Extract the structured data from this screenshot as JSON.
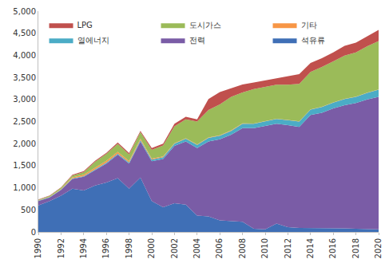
{
  "chart_data": {
    "type": "area",
    "stacked": true,
    "grid": false,
    "legend": "upper left",
    "x": [
      1990,
      1991,
      1992,
      1993,
      1994,
      1995,
      1996,
      1997,
      1998,
      1999,
      2000,
      2001,
      2002,
      2003,
      2004,
      2005,
      2006,
      2007,
      2008,
      2009,
      2010,
      2011,
      2012,
      2013,
      2014,
      2015,
      2016,
      2017,
      2018,
      2019,
      2020
    ],
    "xlim": [
      1990,
      2020
    ],
    "xticks": [
      1990,
      1992,
      1994,
      1996,
      1998,
      2000,
      2002,
      2004,
      2006,
      2008,
      2010,
      2012,
      2014,
      2016,
      2018,
      2020
    ],
    "ylim": [
      0,
      5000
    ],
    "yticks": [
      0,
      500,
      {
        "value": 1000,
        "label": "1,000"
      },
      {
        "value": 1500,
        "label": "1,500"
      },
      {
        "value": 2000,
        "label": "2,000"
      },
      {
        "value": 2500,
        "label": "2,500"
      },
      {
        "value": 3000,
        "label": "3,000"
      },
      {
        "value": 3500,
        "label": "3,500"
      },
      {
        "value": 4000,
        "label": "4,000"
      },
      {
        "value": 4500,
        "label": "4,500"
      },
      {
        "value": 5000,
        "label": "5,000"
      }
    ],
    "series": [
      {
        "name": "석유류",
        "color": "#3f6fb6",
        "values": [
          600,
          700,
          820,
          980,
          940,
          1050,
          1120,
          1220,
          980,
          1230,
          700,
          560,
          650,
          620,
          370,
          350,
          260,
          240,
          230,
          70,
          60,
          190,
          110,
          90,
          90,
          90,
          90,
          80,
          70,
          60,
          60
        ]
      },
      {
        "name": "전력",
        "color": "#7a5ca6",
        "values": [
          100,
          80,
          130,
          220,
          310,
          350,
          430,
          530,
          570,
          820,
          900,
          1090,
          1300,
          1430,
          1530,
          1700,
          1840,
          1960,
          2120,
          2280,
          2340,
          2260,
          2310,
          2290,
          2560,
          2610,
          2710,
          2790,
          2850,
          2940,
          3000
        ]
      },
      {
        "name": "열에너지",
        "color": "#4bacc6",
        "values": [
          10,
          10,
          10,
          15,
          15,
          20,
          20,
          25,
          25,
          30,
          40,
          40,
          50,
          60,
          70,
          80,
          80,
          90,
          100,
          100,
          100,
          110,
          110,
          120,
          120,
          130,
          130,
          140,
          140,
          150,
          160
        ]
      },
      {
        "name": "기타",
        "color": "#f79646",
        "values": [
          5,
          5,
          10,
          20,
          30,
          40,
          40,
          40,
          30,
          30,
          20,
          20,
          10,
          10,
          10,
          10,
          10,
          10,
          10,
          5,
          5,
          5,
          5,
          5,
          5,
          5,
          5,
          5,
          5,
          5,
          5
        ]
      },
      {
        "name": "도시가스",
        "color": "#9bbb59",
        "values": [
          10,
          20,
          30,
          40,
          60,
          130,
          160,
          180,
          150,
          150,
          200,
          250,
          380,
          430,
          520,
          620,
          700,
          760,
          700,
          780,
          780,
          770,
          800,
          850,
          850,
          900,
          930,
          980,
          1000,
          1050,
          1100
        ]
      },
      {
        "name": "LPG",
        "color": "#c0504d",
        "values": [
          10,
          10,
          10,
          20,
          20,
          20,
          20,
          30,
          30,
          30,
          40,
          40,
          60,
          60,
          50,
          250,
          280,
          200,
          180,
          150,
          150,
          150,
          200,
          220,
          200,
          200,
          200,
          220,
          220,
          230,
          250
        ]
      }
    ]
  }
}
